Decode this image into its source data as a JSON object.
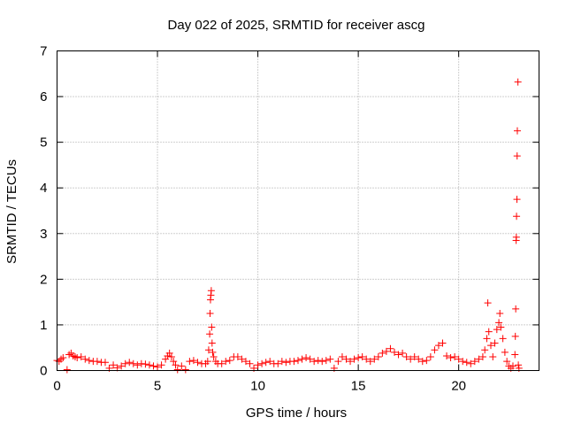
{
  "chart_data": {
    "type": "scatter",
    "title": "Day 022 of 2025, SRMTID for receiver ascg",
    "xlabel": "GPS time / hours",
    "ylabel": "SRMTID / TECUs",
    "xlim": [
      0,
      24
    ],
    "ylim": [
      0,
      7
    ],
    "xticks": [
      0,
      5,
      10,
      15,
      20
    ],
    "xtick_labels": [
      "0",
      "5",
      "10",
      "15",
      "20"
    ],
    "yticks": [
      0,
      1,
      2,
      3,
      4,
      5,
      6,
      7
    ],
    "ytick_labels": [
      "0",
      "1",
      "2",
      "3",
      "4",
      "5",
      "6",
      "7"
    ],
    "grid": true,
    "marker": "+",
    "color": "#ff0000",
    "series": [
      {
        "name": "SRMTID",
        "points": [
          [
            0.0,
            0.22
          ],
          [
            0.1,
            0.2
          ],
          [
            0.2,
            0.25
          ],
          [
            0.3,
            0.28
          ],
          [
            0.5,
            0.02
          ],
          [
            0.6,
            0.35
          ],
          [
            0.7,
            0.38
          ],
          [
            0.8,
            0.32
          ],
          [
            0.9,
            0.3
          ],
          [
            1.0,
            0.28
          ],
          [
            1.2,
            0.3
          ],
          [
            1.4,
            0.25
          ],
          [
            1.6,
            0.22
          ],
          [
            1.8,
            0.2
          ],
          [
            2.0,
            0.2
          ],
          [
            2.2,
            0.18
          ],
          [
            2.4,
            0.18
          ],
          [
            2.6,
            0.05
          ],
          [
            2.8,
            0.12
          ],
          [
            3.0,
            0.06
          ],
          [
            3.2,
            0.1
          ],
          [
            3.4,
            0.15
          ],
          [
            3.6,
            0.18
          ],
          [
            3.8,
            0.15
          ],
          [
            4.0,
            0.12
          ],
          [
            4.2,
            0.15
          ],
          [
            4.4,
            0.14
          ],
          [
            4.6,
            0.12
          ],
          [
            4.8,
            0.1
          ],
          [
            5.0,
            0.08
          ],
          [
            5.2,
            0.12
          ],
          [
            5.4,
            0.25
          ],
          [
            5.5,
            0.32
          ],
          [
            5.6,
            0.38
          ],
          [
            5.7,
            0.3
          ],
          [
            5.8,
            0.2
          ],
          [
            5.9,
            0.12
          ],
          [
            6.0,
            0.02
          ],
          [
            6.2,
            0.1
          ],
          [
            6.4,
            0.02
          ],
          [
            6.6,
            0.2
          ],
          [
            6.8,
            0.22
          ],
          [
            7.0,
            0.18
          ],
          [
            7.2,
            0.15
          ],
          [
            7.4,
            0.15
          ],
          [
            7.5,
            0.2
          ],
          [
            7.55,
            0.45
          ],
          [
            7.6,
            0.8
          ],
          [
            7.62,
            1.25
          ],
          [
            7.64,
            1.55
          ],
          [
            7.66,
            1.65
          ],
          [
            7.68,
            1.75
          ],
          [
            7.7,
            0.95
          ],
          [
            7.72,
            0.6
          ],
          [
            7.75,
            0.4
          ],
          [
            7.8,
            0.3
          ],
          [
            7.9,
            0.2
          ],
          [
            8.0,
            0.15
          ],
          [
            8.2,
            0.15
          ],
          [
            8.4,
            0.2
          ],
          [
            8.6,
            0.22
          ],
          [
            8.8,
            0.3
          ],
          [
            9.0,
            0.3
          ],
          [
            9.2,
            0.25
          ],
          [
            9.4,
            0.2
          ],
          [
            9.6,
            0.15
          ],
          [
            9.8,
            0.05
          ],
          [
            10.0,
            0.12
          ],
          [
            10.2,
            0.15
          ],
          [
            10.4,
            0.18
          ],
          [
            10.6,
            0.2
          ],
          [
            10.8,
            0.15
          ],
          [
            11.0,
            0.15
          ],
          [
            11.2,
            0.2
          ],
          [
            11.4,
            0.18
          ],
          [
            11.6,
            0.2
          ],
          [
            11.8,
            0.2
          ],
          [
            12.0,
            0.22
          ],
          [
            12.2,
            0.25
          ],
          [
            12.4,
            0.28
          ],
          [
            12.6,
            0.25
          ],
          [
            12.8,
            0.2
          ],
          [
            13.0,
            0.22
          ],
          [
            13.2,
            0.2
          ],
          [
            13.4,
            0.22
          ],
          [
            13.6,
            0.25
          ],
          [
            13.8,
            0.05
          ],
          [
            14.0,
            0.2
          ],
          [
            14.2,
            0.3
          ],
          [
            14.4,
            0.25
          ],
          [
            14.6,
            0.2
          ],
          [
            14.8,
            0.25
          ],
          [
            15.0,
            0.28
          ],
          [
            15.2,
            0.3
          ],
          [
            15.4,
            0.25
          ],
          [
            15.6,
            0.2
          ],
          [
            15.8,
            0.25
          ],
          [
            16.0,
            0.3
          ],
          [
            16.2,
            0.38
          ],
          [
            16.4,
            0.42
          ],
          [
            16.6,
            0.48
          ],
          [
            16.8,
            0.4
          ],
          [
            17.0,
            0.35
          ],
          [
            17.2,
            0.38
          ],
          [
            17.4,
            0.3
          ],
          [
            17.6,
            0.25
          ],
          [
            17.8,
            0.3
          ],
          [
            18.0,
            0.25
          ],
          [
            18.2,
            0.2
          ],
          [
            18.4,
            0.22
          ],
          [
            18.6,
            0.3
          ],
          [
            18.8,
            0.45
          ],
          [
            19.0,
            0.55
          ],
          [
            19.2,
            0.6
          ],
          [
            19.4,
            0.32
          ],
          [
            19.6,
            0.28
          ],
          [
            19.8,
            0.3
          ],
          [
            20.0,
            0.25
          ],
          [
            20.2,
            0.2
          ],
          [
            20.4,
            0.18
          ],
          [
            20.6,
            0.15
          ],
          [
            20.8,
            0.2
          ],
          [
            21.0,
            0.25
          ],
          [
            21.2,
            0.3
          ],
          [
            21.3,
            0.45
          ],
          [
            21.4,
            0.7
          ],
          [
            21.45,
            1.48
          ],
          [
            21.5,
            0.85
          ],
          [
            21.6,
            0.55
          ],
          [
            21.7,
            0.3
          ],
          [
            21.8,
            0.6
          ],
          [
            21.9,
            0.9
          ],
          [
            22.0,
            1.05
          ],
          [
            22.05,
            1.25
          ],
          [
            22.1,
            0.95
          ],
          [
            22.2,
            0.7
          ],
          [
            22.3,
            0.4
          ],
          [
            22.4,
            0.2
          ],
          [
            22.5,
            0.1
          ],
          [
            22.6,
            0.05
          ],
          [
            22.7,
            0.1
          ],
          [
            22.8,
            0.35
          ],
          [
            22.82,
            0.75
          ],
          [
            22.84,
            1.35
          ],
          [
            22.86,
            2.85
          ],
          [
            22.87,
            2.92
          ],
          [
            22.88,
            3.38
          ],
          [
            22.9,
            3.75
          ],
          [
            22.91,
            4.7
          ],
          [
            22.92,
            5.25
          ],
          [
            22.95,
            6.32
          ],
          [
            22.97,
            0.12
          ],
          [
            23.0,
            0.05
          ]
        ]
      }
    ]
  }
}
